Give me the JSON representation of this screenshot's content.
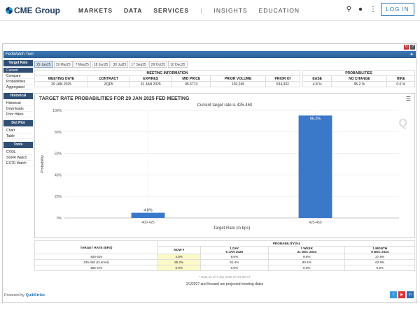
{
  "header": {
    "logo_text": "CME Group",
    "nav": [
      "MARKETS",
      "DATA",
      "SERVICES",
      "|",
      "INSIGHTS",
      "EDUCATION"
    ],
    "login_label": "LOG IN"
  },
  "widget": {
    "title": "FedWatch Tool",
    "sidebar": [
      {
        "section": "Target Rate",
        "items": [
          "Current",
          "Compare",
          "Probabilities",
          "Aggregated"
        ]
      },
      {
        "section": "Historical",
        "items": [
          "Historical",
          "Downloads",
          "Prior Hikes"
        ]
      },
      {
        "section": "Dot Plot",
        "items": [
          "Chart",
          "Table"
        ]
      },
      {
        "section": "Tools",
        "items": [
          "CVOL",
          "SOFR Watch",
          "ESTR Watch"
        ]
      }
    ],
    "tabs": [
      "29 Jan25",
      "19 Mar25",
      "7 May25",
      "18 Jun25",
      "30 Jul25",
      "17 Sep25",
      "29 Oct25",
      "10 Dec25"
    ],
    "meeting": {
      "header": "MEETING INFORMATION",
      "columns": [
        "MEETING DATE",
        "CONTRACT",
        "EXPIRES",
        "MID PRICE",
        "PRIOR VOLUME",
        "PRIOR OI"
      ],
      "values": [
        "29 JAN 2025",
        "ZQF5",
        "31 JAN 2025",
        "95.6713",
        "130,245",
        "534,332"
      ]
    },
    "probabilities": {
      "header": "PROBABILITIES",
      "columns": [
        "EASE",
        "NO CHANGE",
        "HIKE"
      ],
      "values": [
        "4.8 %",
        "95.2 %",
        "0.0 %"
      ]
    },
    "chart": {
      "title": "TARGET RATE PROBABILITIES FOR 29 JAN 2025 FED MEETING",
      "subtitle": "Current target rate is 425-450",
      "watermark": "Q"
    },
    "prob_table": {
      "header_group": "PROBABILITY(%)",
      "col0": "TARGET RATE (BPS)",
      "cols": [
        {
          "title": "NOW",
          "sub": ""
        },
        {
          "title": "1 DAY",
          "sub": "6 JAN 2025"
        },
        {
          "title": "1 WEEK",
          "sub": "31 DEC 2024"
        },
        {
          "title": "1 MONTH",
          "sub": "6 DEC 2024"
        }
      ],
      "rows": [
        {
          "rate": "400-425",
          "vals": [
            "4.8%",
            "8.6%",
            "9.6%",
            "27.6%"
          ]
        },
        {
          "rate": "425-450 (Current)",
          "vals": [
            "95.2%",
            "91.4%",
            "90.4%",
            "62.9%"
          ]
        },
        {
          "rate": "450-475",
          "vals": [
            "0.0%",
            "0.0%",
            "0.0%",
            "9.5%"
          ]
        }
      ]
    },
    "note": "* Data as of 7 Jan 2025 07:51:38 CT",
    "footer_note": "1/1/2027 and forward are projected meeting dates",
    "powered_by": "Powered by",
    "brand": "QuikStrike"
  },
  "chart_data": {
    "type": "bar",
    "categories": [
      "400-425",
      "425-450"
    ],
    "values": [
      4.8,
      95.2
    ],
    "data_labels": [
      "4.8%",
      "95.2%"
    ],
    "title": "TARGET RATE PROBABILITIES FOR 29 JAN 2025 FED MEETING",
    "subtitle": "Current target rate is 425-450",
    "xlabel": "Target Rate (in bps)",
    "ylabel": "Probability",
    "ylim": [
      0,
      100
    ],
    "yticks": [
      "0%",
      "20%",
      "40%",
      "60%",
      "80%",
      "100%"
    ],
    "colors": [
      "#3a78c9",
      "#3a78c9"
    ]
  }
}
